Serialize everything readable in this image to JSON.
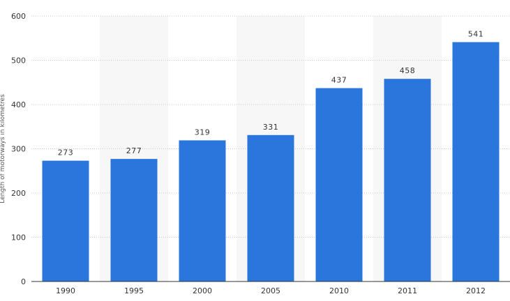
{
  "chart_data": {
    "type": "bar",
    "categories": [
      "1990",
      "1995",
      "2000",
      "2005",
      "2010",
      "2011",
      "2012"
    ],
    "values": [
      273,
      277,
      319,
      331,
      437,
      458,
      541
    ],
    "data_labels": [
      "273",
      "277",
      "319",
      "331",
      "437",
      "458",
      "541"
    ],
    "title": "",
    "xlabel": "",
    "ylabel": "Length of motorways in kilometres",
    "ylim": [
      0,
      600
    ],
    "yticks": [
      0,
      100,
      200,
      300,
      400,
      500,
      600
    ],
    "ytick_labels": [
      "0",
      "100",
      "200",
      "300",
      "400",
      "500",
      "600"
    ],
    "grid": true,
    "legend": "none",
    "colors": {
      "bar": "#2b76dc",
      "alt_band": "#f7f7f7",
      "gridline": "#c8c8c8",
      "axis": "#333333"
    }
  }
}
